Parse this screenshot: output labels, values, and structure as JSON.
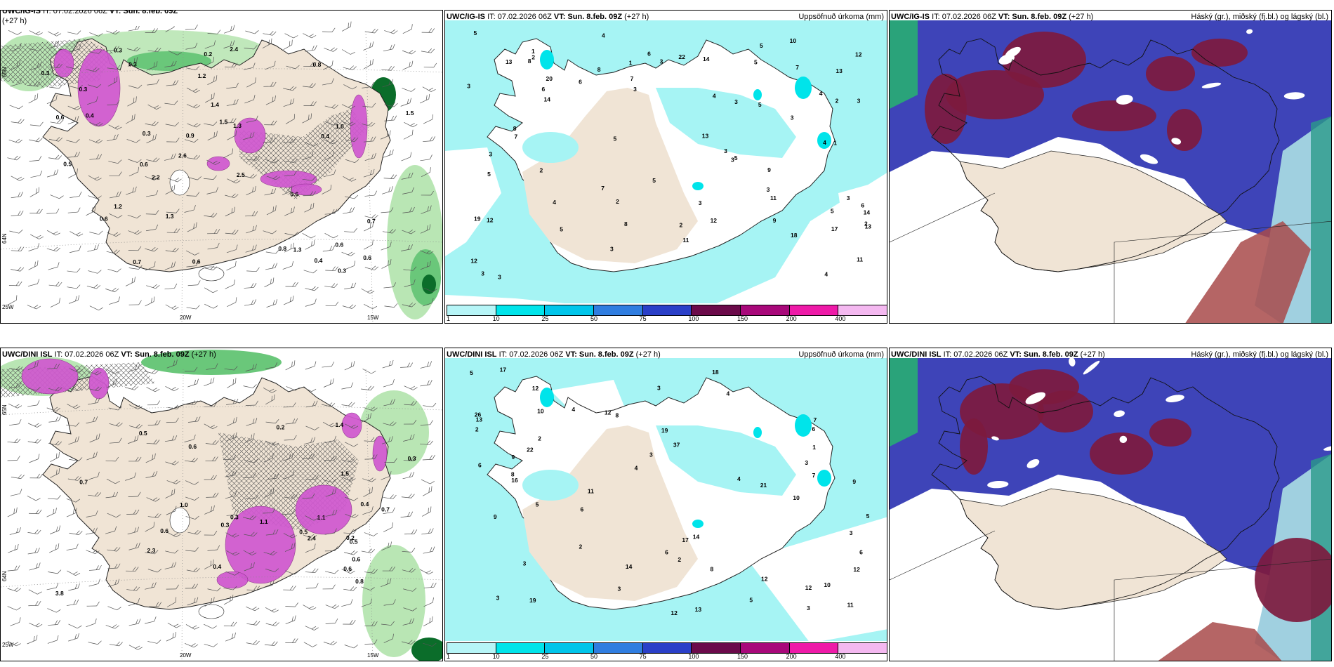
{
  "panels": [
    {
      "id": "p1",
      "title_model": "UWC/IG-IS",
      "title_it": "IT: 07.02.2026 06Z",
      "title_vt": "VT: Sun. 8.feb. 09Z",
      "title_lead": "(+27 h)",
      "right_title": "",
      "type": "precip-wind",
      "lon_labels": [
        "25W",
        "20W",
        "15W"
      ],
      "lat_labels": [
        "65N",
        "64N"
      ],
      "values": [
        "0.6",
        "0.8",
        "2.5",
        "0.5",
        "0.3",
        "0.3",
        "0.6",
        "0.9",
        "1.2",
        "1.3",
        "1.2",
        "0.6",
        "0.8",
        "0.6",
        "2.4",
        "2.6",
        "1.4",
        "1.5",
        "0.6",
        "0.4",
        "0.3",
        "2.2",
        "0.3",
        "0.4",
        "0.7",
        "0.2",
        "1.3",
        "1.5",
        "0.4",
        "0.3",
        "0.3",
        "0.6",
        "0.7",
        "0.6",
        "1.3",
        "1.0"
      ]
    },
    {
      "id": "p2",
      "title_model": "UWC/IG-IS",
      "title_it": "IT: 07.02.2026 06Z",
      "title_vt": "VT: Sun. 8.feb. 09Z",
      "title_lead": "(+27 h)",
      "right_title": "Uppsöfnuð úrkoma (mm)",
      "type": "accum",
      "values": [
        "3",
        "5",
        "3",
        "7",
        "14",
        "12",
        "10",
        "13",
        "14",
        "22",
        "9",
        "12",
        "5",
        "5",
        "3",
        "6",
        "5",
        "7",
        "11",
        "6",
        "4",
        "8",
        "11",
        "8",
        "3",
        "9",
        "12",
        "7",
        "11",
        "5",
        "3",
        "3",
        "3",
        "3",
        "5",
        "3",
        "4",
        "3",
        "2",
        "17",
        "14",
        "13",
        "20",
        "12",
        "19",
        "18",
        "13",
        "2",
        "3",
        "3",
        "2",
        "4",
        "1",
        "1",
        "2",
        "13",
        "2",
        "1",
        "4",
        "3",
        "8",
        "7",
        "5",
        "3",
        "8",
        "6",
        "2",
        "4",
        "6",
        "5",
        "3",
        "5",
        "4",
        "5"
      ]
    },
    {
      "id": "p3",
      "title_model": "UWC/IG-IS",
      "title_it": "IT: 07.02.2026 06Z",
      "title_vt": "VT: Sun. 8.feb. 09Z",
      "title_lead": "(+27 h)",
      "right_title": "Háský (gr.), miðský (fj.bl.) og lágský (bl.)",
      "type": "clouds"
    },
    {
      "id": "p4",
      "title_model": "UWC/DINI ISL",
      "title_it": "IT: 07.02.2026 06Z",
      "title_vt": "VT: Sun. 8.feb. 09Z",
      "title_lead": "(+27 h)",
      "right_title": "",
      "type": "precip-wind",
      "lon_labels": [
        "25W",
        "20W",
        "15W"
      ],
      "lat_labels": [
        "65N",
        "64N"
      ],
      "values": [
        "0.8",
        "3.8",
        "0.5",
        "2.3",
        "0.3",
        "2.4",
        "0.3",
        "1.4",
        "0.2",
        "0.6",
        "0.6",
        "0.7",
        "1.1",
        "1.0",
        "0.6",
        "0.7",
        "0.5",
        "0.6",
        "1.1",
        "0.3",
        "0.4",
        "1.5",
        "0.5",
        "0.4",
        "0.2"
      ]
    },
    {
      "id": "p5",
      "title_model": "UWC/DINI ISL",
      "title_it": "IT: 07.02.2026 06Z",
      "title_vt": "VT: Sun. 8.feb. 09Z",
      "title_lead": "(+27 h)",
      "right_title": "Uppsöfnuð úrkoma (mm)",
      "type": "accum",
      "values": [
        "8",
        "6",
        "7",
        "4",
        "12",
        "13",
        "14",
        "10",
        "19",
        "16",
        "8",
        "3",
        "4",
        "3",
        "11",
        "12",
        "9",
        "2",
        "6",
        "3",
        "12",
        "17",
        "13",
        "11",
        "8",
        "9",
        "10",
        "6",
        "5",
        "10",
        "12",
        "19",
        "37",
        "22",
        "21",
        "26",
        "18",
        "17",
        "12",
        "9",
        "7",
        "5",
        "3",
        "4",
        "3",
        "2",
        "3",
        "6",
        "5",
        "12",
        "14",
        "3",
        "2",
        "2",
        "1",
        "6",
        "5",
        "4",
        "3"
      ]
    },
    {
      "id": "p6",
      "title_model": "UWC/DINI ISL",
      "title_it": "IT: 07.02.2026 06Z",
      "title_vt": "VT: Sun. 8.feb. 09Z",
      "title_lead": "(+27 h)",
      "right_title": "Háský (gr.), miðský (fj.bl.) og lágský (bl.)",
      "type": "clouds"
    }
  ],
  "colorbar": {
    "labels": [
      "1",
      "10",
      "25",
      "50",
      "75",
      "100",
      "150",
      "200",
      "400"
    ],
    "colors": [
      "#b6f5f7",
      "#00e4ea",
      "#00c5ea",
      "#2f7de0",
      "#2a3fc8",
      "#6b0a4a",
      "#a8087a",
      "#ee1aa8",
      "#f4b8f0"
    ]
  },
  "colors": {
    "land": "#f0e4d5",
    "precip_light": "#a6f4f4",
    "green_light": "#b9e6b4",
    "green_mid": "#6ac77a",
    "green_dark": "#0b6d2a",
    "magenta": "#d058d0",
    "cloud_high": "#7d1a3e",
    "cloud_mid": "#3e44b8",
    "cloud_low": "#a0d0e0"
  }
}
